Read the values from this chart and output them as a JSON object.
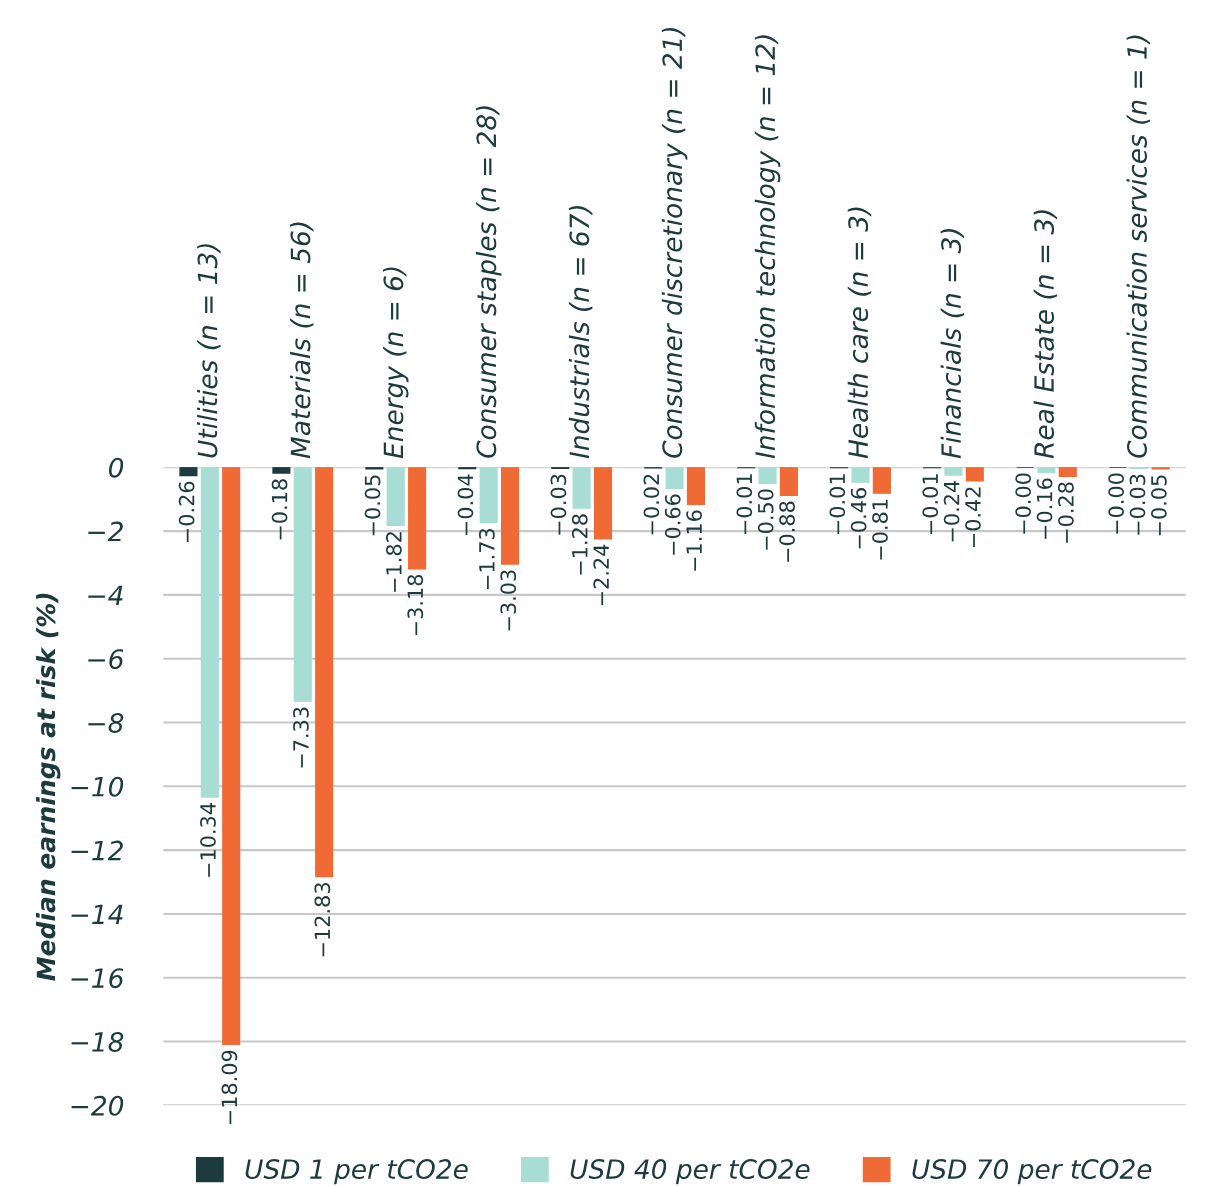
{
  "chart_data": {
    "type": "bar",
    "ylabel": "Median earnings at risk (%)",
    "categories": [
      "Utilities (n = 13)",
      "Materials (n = 56)",
      "Energy (n = 6)",
      "Consumer staples (n = 28)",
      "Industrials (n = 67)",
      "Consumer discretionary (n = 21)",
      "Information technology (n = 12)",
      "Health care (n = 3)",
      "Financials (n = 3)",
      "Real Estate (n = 3)",
      "Communication services (n = 1)"
    ],
    "series": [
      {
        "name": "USD 1 per tCO2e",
        "color": "#1d3a3f",
        "values": [
          -0.26,
          -0.18,
          -0.05,
          -0.04,
          -0.03,
          -0.02,
          -0.01,
          -0.01,
          -0.01,
          0,
          0
        ],
        "value_labels": [
          "−0.26",
          "−0.18",
          "−0.05",
          "−0.04",
          "−0.03",
          "−0.02",
          "−0.01",
          "−0.01",
          "−0.01",
          "−0.00",
          "−0.00"
        ]
      },
      {
        "name": "USD 40 per tCO2e",
        "color": "#a8ddd6",
        "values": [
          -10.34,
          -7.33,
          -1.82,
          -1.73,
          -1.28,
          -0.66,
          -0.5,
          -0.46,
          -0.24,
          -0.16,
          -0.03
        ],
        "value_labels": [
          "−10.34",
          "−7.33",
          "−1.82",
          "−1.73",
          "−1.28",
          "−0.66",
          "−0.50",
          "−0.46",
          "−0.24",
          "−0.16",
          "−0.03"
        ]
      },
      {
        "name": "USD 70 per tCO2e",
        "color": "#f06a35",
        "values": [
          -18.09,
          -12.83,
          -3.18,
          -3.03,
          -2.24,
          -1.16,
          -0.88,
          -0.81,
          -0.42,
          -0.28,
          -0.05
        ],
        "value_labels": [
          "−18.09",
          "−12.83",
          "−3.18",
          "−3.03",
          "−2.24",
          "−1.16",
          "−0.88",
          "−0.81",
          "−0.42",
          "−0.28",
          "−0.05"
        ]
      }
    ],
    "ylim": [
      -20,
      0
    ],
    "yticks": [
      0,
      -2,
      -4,
      -6,
      -8,
      -10,
      -12,
      -14,
      -16,
      -18,
      -20
    ],
    "grid": "y",
    "legend": "bottom"
  }
}
